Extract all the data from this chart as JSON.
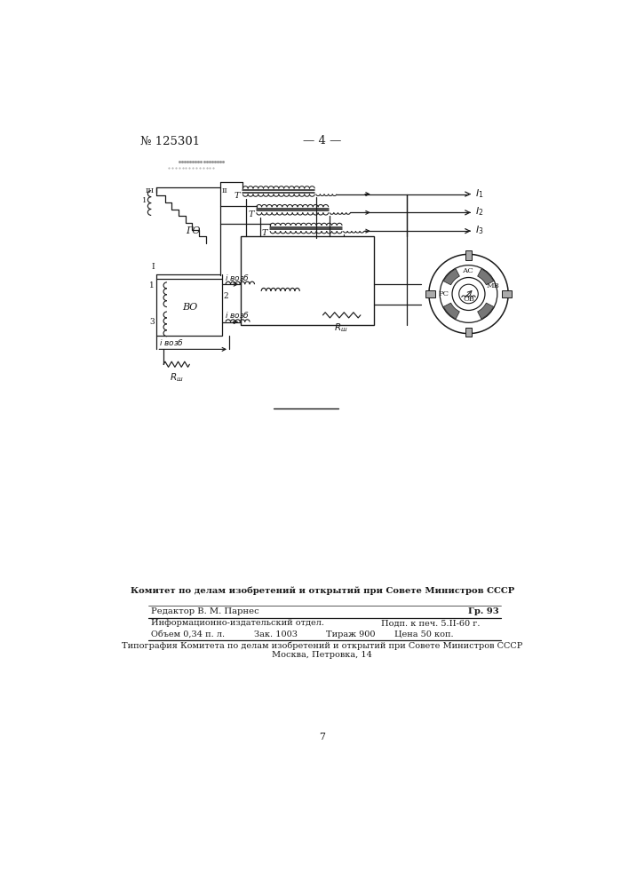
{
  "page_number": "№ 125301",
  "page_center_text": "— 4 —",
  "bg_color": "#ffffff",
  "line_color": "#1a1a1a",
  "small_number": "7",
  "footer": {
    "line1": "Комитет по делам изобретений и открытий при Совете Министров СССР",
    "editor": "Редактор В. М. Парнес",
    "gr": "Гр. 93",
    "info1": "Информационно-издательский отдел.",
    "podp": "Подп. к печ. 5.II-60 г.",
    "obem": "Объем 0,34 п. л.",
    "zak": "Зак. 1003",
    "tirazh": "Тираж 900",
    "cena": "Цена 50 коп.",
    "tip1": "Типография Комитета по делам изобретений и открытий при Совете Министров СССР",
    "tip2": "Москва, Петровка, 14"
  }
}
